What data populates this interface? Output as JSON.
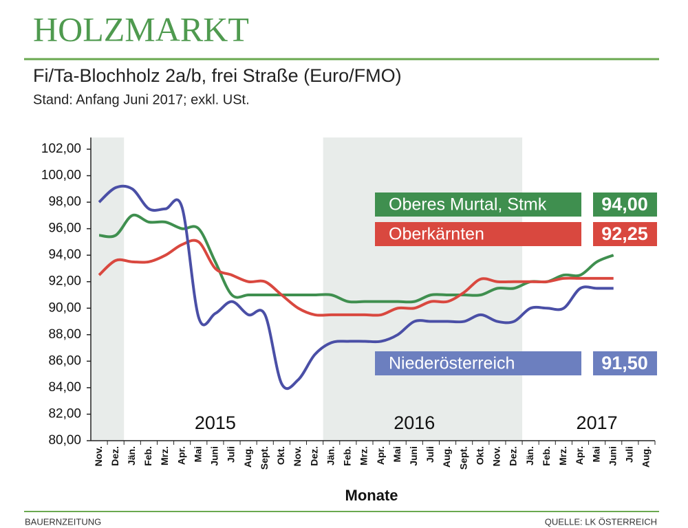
{
  "chart_data": {
    "type": "line",
    "title": "HOLZMARKT",
    "subtitle": "Fi/Ta-Blochholz 2a/b, frei Straße (Euro/FMO)",
    "note": "Stand: Anfang Juni 2017; exkl. USt.",
    "xlabel": "Monate",
    "source_left": "BAUERNZEITUNG",
    "source_right": "QUELLE: LK ÖSTERREICH",
    "categories": [
      "Nov.",
      "Dez.",
      "Jän.",
      "Feb.",
      "Mrz.",
      "Apr.",
      "Mai",
      "Juni",
      "Juli",
      "Aug.",
      "Sept.",
      "Okt.",
      "Nov.",
      "Dez.",
      "Jän.",
      "Feb.",
      "Mrz.",
      "Apr.",
      "Mai",
      "Juni",
      "Juli",
      "Aug.",
      "Sept.",
      "Okt.",
      "Nov.",
      "Dez.",
      "Jän.",
      "Feb.",
      "Mrz.",
      "Apr.",
      "Mai",
      "Juni",
      "Juli",
      "Aug."
    ],
    "year_labels": [
      {
        "label": "2015",
        "category": 7
      },
      {
        "label": "2016",
        "category": 19
      },
      {
        "label": "2017",
        "category": 30
      }
    ],
    "shaded_ranges": [
      [
        0,
        1
      ],
      [
        14,
        25
      ]
    ],
    "ylim": [
      80,
      102
    ],
    "yticks": [
      {
        "value": 80,
        "label": "80,00"
      },
      {
        "value": 82,
        "label": "82,00"
      },
      {
        "value": 84,
        "label": "84,00"
      },
      {
        "value": 86,
        "label": "86,00"
      },
      {
        "value": 88,
        "label": "88,00"
      },
      {
        "value": 90,
        "label": "90,00"
      },
      {
        "value": 92,
        "label": "92,00"
      },
      {
        "value": 94,
        "label": "94,00"
      },
      {
        "value": 96,
        "label": "96,00"
      },
      {
        "value": 98,
        "label": "98,00"
      },
      {
        "value": 100,
        "label": "100,00"
      },
      {
        "value": 102,
        "label": "102,00"
      }
    ],
    "grid": false,
    "series": [
      {
        "name": "Oberes Murtal, Stmk",
        "color": "#3f8f4f",
        "end_value_label": "94,00",
        "values": [
          95.5,
          95.5,
          97.0,
          96.5,
          96.5,
          96.0,
          96.0,
          93.5,
          91.0,
          91.0,
          91.0,
          91.0,
          91.0,
          91.0,
          91.0,
          90.5,
          90.5,
          90.5,
          90.5,
          90.5,
          91.0,
          91.0,
          91.0,
          91.0,
          91.5,
          91.5,
          92.0,
          92.0,
          92.5,
          92.5,
          93.5,
          94.0,
          null,
          null
        ]
      },
      {
        "name": "Oberkärnten",
        "color": "#d9483f",
        "end_value_label": "92,25",
        "values": [
          92.5,
          93.6,
          93.5,
          93.5,
          94.0,
          94.8,
          95.0,
          93.0,
          92.5,
          92.0,
          92.0,
          91.0,
          90.0,
          89.5,
          89.5,
          89.5,
          89.5,
          89.5,
          90.0,
          90.0,
          90.5,
          90.5,
          91.2,
          92.2,
          92.0,
          92.0,
          92.0,
          92.0,
          92.25,
          92.25,
          92.25,
          92.25,
          null,
          null
        ]
      },
      {
        "name": "Niederösterreich",
        "color": "#4a4fa6",
        "box_color": "#6c7fbf",
        "end_value_label": "91,50",
        "values": [
          98.0,
          99.1,
          99.0,
          97.5,
          97.5,
          97.6,
          89.3,
          89.6,
          90.5,
          89.5,
          89.5,
          84.3,
          84.6,
          86.5,
          87.4,
          87.5,
          87.5,
          87.5,
          88.0,
          89.0,
          89.0,
          89.0,
          89.0,
          89.5,
          89.0,
          89.0,
          90.0,
          90.0,
          90.0,
          91.5,
          91.5,
          91.5,
          null,
          null
        ]
      }
    ]
  }
}
